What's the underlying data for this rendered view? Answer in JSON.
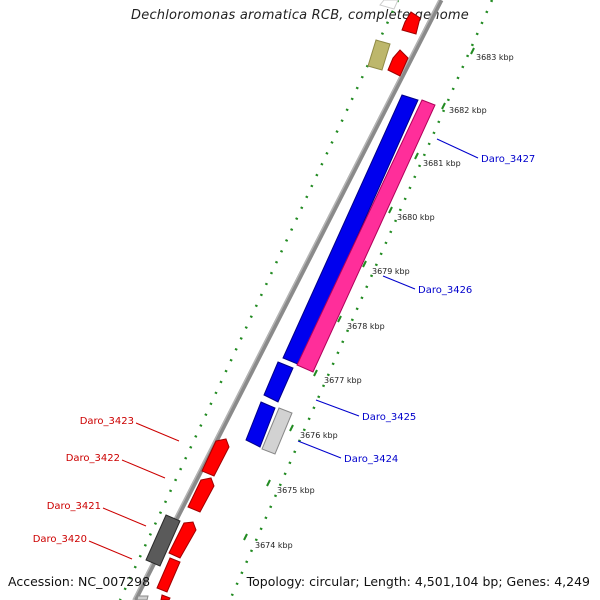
{
  "title": "Dechloromonas aromatica RCB, complete genome",
  "footer": {
    "accession": "Accession: NC_007298",
    "summary": "Topology: circular; Length: 4,501,104 bp; Genes: 4,249"
  },
  "colors": {
    "backbone": "#8a8a8a",
    "forward_gene": "#ff0000",
    "forward_gene_label": "#cc0000",
    "reverse_blue": "#0000ee",
    "reverse_pink": "#ff2e9a",
    "reverse_gray": "#cfcfcf",
    "dark_gray": "#5a5a5a",
    "olive": "#bdb76b",
    "tick_green": "#228b22",
    "label_blue": "#0000cc"
  },
  "ticks": [
    {
      "label": "3683 kbp"
    },
    {
      "label": "3682 kbp"
    },
    {
      "label": "3681 kbp"
    },
    {
      "label": "3680 kbp"
    },
    {
      "label": "3679 kbp"
    },
    {
      "label": "3678 kbp"
    },
    {
      "label": "3677 kbp"
    },
    {
      "label": "3676 kbp"
    },
    {
      "label": "3675 kbp"
    },
    {
      "label": "3674 kbp"
    }
  ],
  "gene_labels": {
    "forward": [
      {
        "label": "Daro_3423"
      },
      {
        "label": "Daro_3422"
      },
      {
        "label": "Daro_3421"
      },
      {
        "label": "Daro_3420"
      }
    ],
    "reverse": [
      {
        "label": "Daro_3427"
      },
      {
        "label": "Daro_3426"
      },
      {
        "label": "Daro_3425"
      },
      {
        "label": "Daro_3424"
      }
    ]
  }
}
